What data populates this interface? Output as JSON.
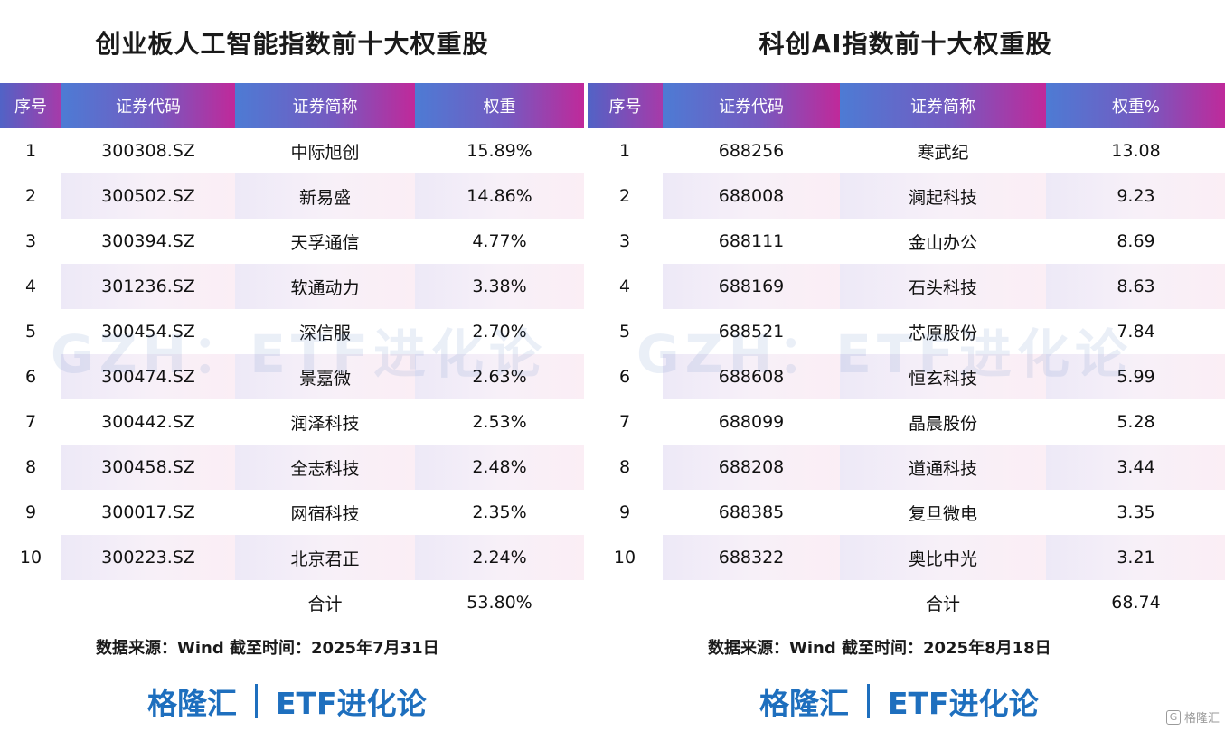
{
  "left": {
    "title": "创业板人工智能指数前十大权重股",
    "headers": [
      "序号",
      "证券代码",
      "证券简称",
      "权重"
    ],
    "rows": [
      {
        "index": "1",
        "code": "300308.SZ",
        "name": "中际旭创",
        "weight": "15.89%"
      },
      {
        "index": "2",
        "code": "300502.SZ",
        "name": "新易盛",
        "weight": "14.86%"
      },
      {
        "index": "3",
        "code": "300394.SZ",
        "name": "天孚通信",
        "weight": "4.77%"
      },
      {
        "index": "4",
        "code": "301236.SZ",
        "name": "软通动力",
        "weight": "3.38%"
      },
      {
        "index": "5",
        "code": "300454.SZ",
        "name": "深信服",
        "weight": "2.70%"
      },
      {
        "index": "6",
        "code": "300474.SZ",
        "name": "景嘉微",
        "weight": "2.63%"
      },
      {
        "index": "7",
        "code": "300442.SZ",
        "name": "润泽科技",
        "weight": "2.53%"
      },
      {
        "index": "8",
        "code": "300458.SZ",
        "name": "全志科技",
        "weight": "2.48%"
      },
      {
        "index": "9",
        "code": "300017.SZ",
        "name": "网宿科技",
        "weight": "2.35%"
      },
      {
        "index": "10",
        "code": "300223.SZ",
        "name": "北京君正",
        "weight": "2.24%"
      }
    ],
    "total_label": "合计",
    "total_value": "53.80%",
    "source": "数据来源：Wind 截至时间：2025年7月31日",
    "watermark": "GZH：ETF进化论"
  },
  "right": {
    "title": "科创AI指数前十大权重股",
    "headers": [
      "序号",
      "证券代码",
      "证券简称",
      "权重%"
    ],
    "rows": [
      {
        "index": "1",
        "code": "688256",
        "name": "寒武纪",
        "weight": "13.08"
      },
      {
        "index": "2",
        "code": "688008",
        "name": "澜起科技",
        "weight": "9.23"
      },
      {
        "index": "3",
        "code": "688111",
        "name": "金山办公",
        "weight": "8.69"
      },
      {
        "index": "4",
        "code": "688169",
        "name": "石头科技",
        "weight": "8.63"
      },
      {
        "index": "5",
        "code": "688521",
        "name": "芯原股份",
        "weight": "7.84"
      },
      {
        "index": "6",
        "code": "688608",
        "name": "恒玄科技",
        "weight": "5.99"
      },
      {
        "index": "7",
        "code": "688099",
        "name": "晶晨股份",
        "weight": "5.28"
      },
      {
        "index": "8",
        "code": "688208",
        "name": "道通科技",
        "weight": "3.44"
      },
      {
        "index": "9",
        "code": "688385",
        "name": "复旦微电",
        "weight": "3.35"
      },
      {
        "index": "10",
        "code": "688322",
        "name": "奥比中光",
        "weight": "3.21"
      }
    ],
    "total_label": "合计",
    "total_value": "68.74",
    "source": "数据来源：Wind 截至时间：2025年8月18日",
    "watermark": "GZH：ETF进化论"
  },
  "brand": {
    "name": "格隆汇",
    "channel": "ETF进化论"
  },
  "corner_logo": {
    "glyph": "G",
    "text": "格隆汇"
  }
}
